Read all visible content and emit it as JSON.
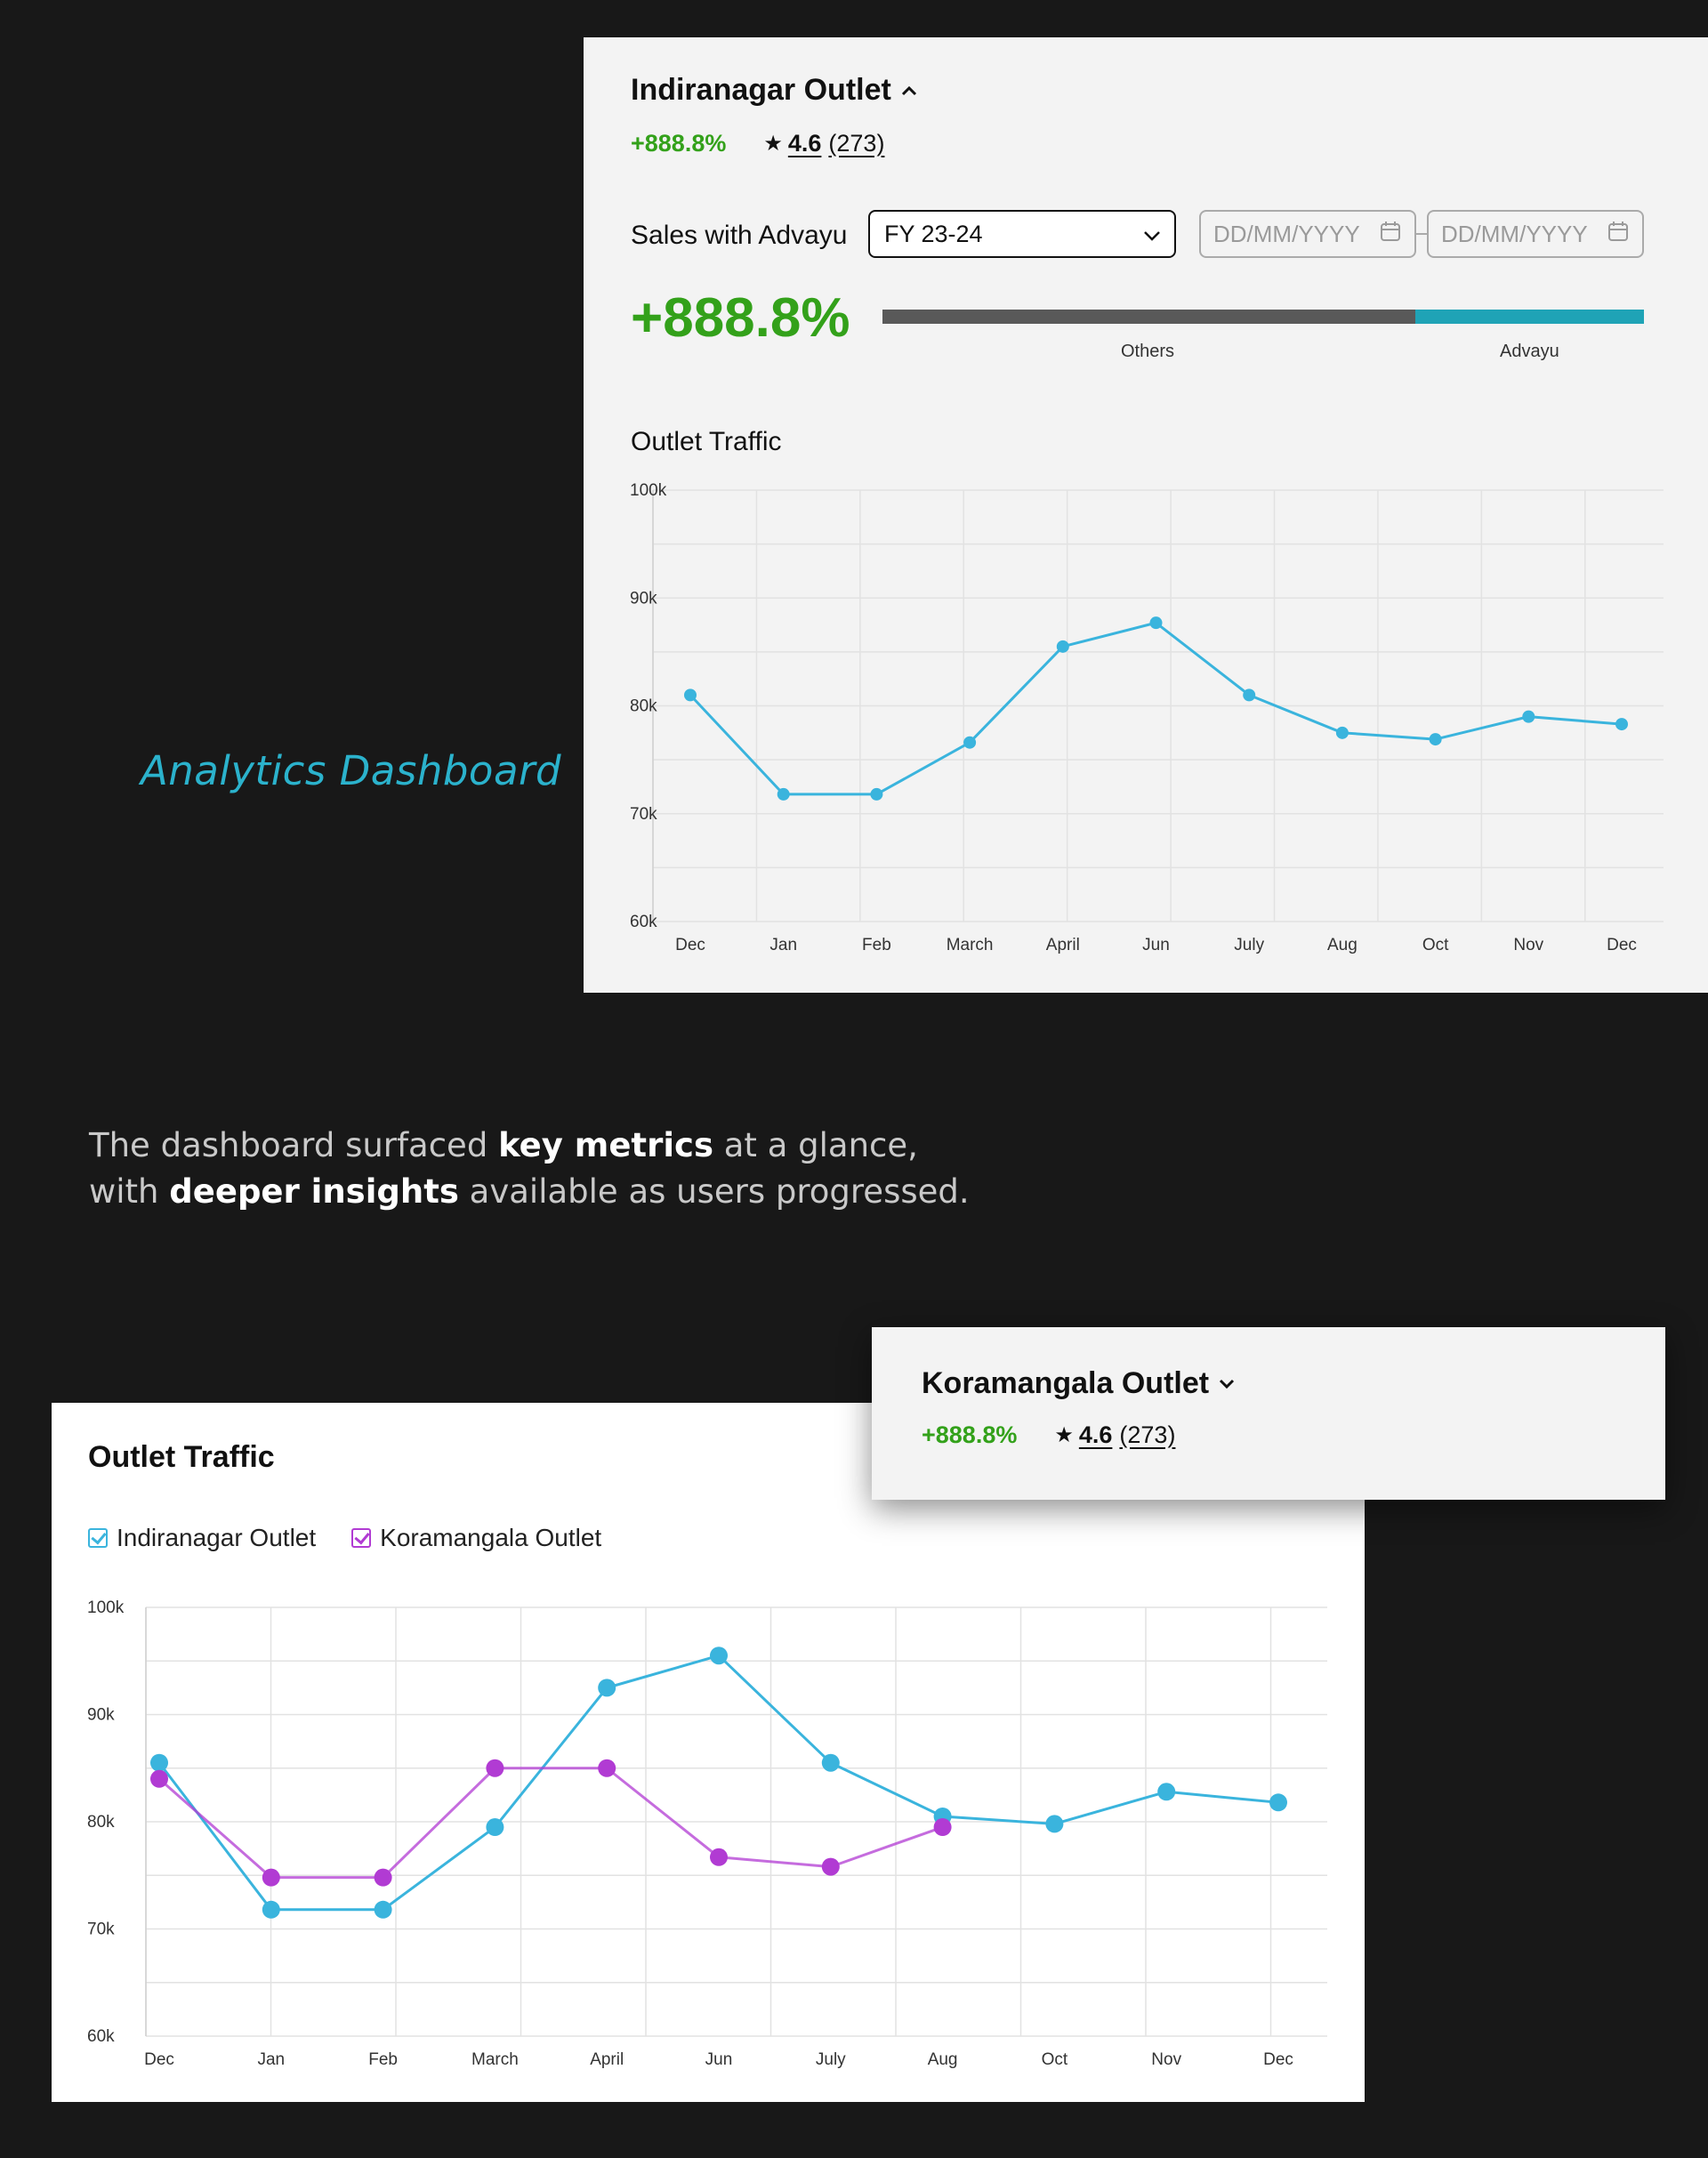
{
  "caption": {
    "title": "Analytics Dashboard"
  },
  "top_panel": {
    "outlet_name": "Indiranagar Outlet",
    "growth": "+888.8%",
    "rating": "4.6",
    "reviews": "(273)",
    "sales_label": "Sales with Advayu",
    "fy_select": "FY 23-24",
    "date_placeholder_1": "DD/MM/YYYY",
    "date_placeholder_2": "DD/MM/YYYY",
    "big_growth": "+888.8%",
    "split": {
      "others_label": "Others",
      "advayu_label": "Advayu",
      "advayu_share": 0.3,
      "others_color": "#595959",
      "advayu_color": "#1fa3b6"
    },
    "chart_title": "Outlet Traffic"
  },
  "middle_text": {
    "part1": "The dashboard surfaced ",
    "bold1": "key metrics",
    "part2": " at a glance,",
    "part3": "with ",
    "bold2": "deeper insights",
    "part4": " available as users progressed."
  },
  "bottom_panel": {
    "title": "Outlet Traffic",
    "legend": [
      {
        "label": "Indiranagar Outlet",
        "color": "#3ab4dd"
      },
      {
        "label": "Koramangala Outlet",
        "color": "#b13bd3"
      }
    ]
  },
  "popup": {
    "outlet_name": "Koramangala Outlet",
    "growth": "+888.8%",
    "rating": "4.6",
    "reviews": "(273)"
  },
  "colors": {
    "accent_green": "#33a11a",
    "teal": "#2bb2cc",
    "series_blue": "#3ab4dd",
    "series_purple": "#b13bd3"
  },
  "chart_data": [
    {
      "type": "line",
      "title": "Outlet Traffic",
      "categories": [
        "Dec",
        "Jan",
        "Feb",
        "March",
        "April",
        "Jun",
        "July",
        "Aug",
        "Oct",
        "Nov",
        "Dec"
      ],
      "y_ticks": [
        "100k",
        "90k",
        "80k",
        "70k",
        "60k"
      ],
      "ylim": [
        60000,
        100000
      ],
      "grid": true,
      "series": [
        {
          "color": "#3ab4dd",
          "values": [
            81000,
            71800,
            71800,
            76600,
            85500,
            87700,
            81000,
            77500,
            76900,
            79000,
            78300
          ]
        }
      ]
    },
    {
      "type": "line",
      "title": "Outlet Traffic",
      "categories": [
        "Dec",
        "Jan",
        "Feb",
        "March",
        "April",
        "Jun",
        "July",
        "Aug",
        "Oct",
        "Nov",
        "Dec"
      ],
      "y_ticks": [
        "100k",
        "90k",
        "80k",
        "70k",
        "60k"
      ],
      "ylim": [
        60000,
        100000
      ],
      "grid": true,
      "series": [
        {
          "name": "Indiranagar Outlet",
          "color": "#3ab4dd",
          "values": [
            85500,
            71800,
            71800,
            79500,
            92500,
            95500,
            85500,
            80500,
            79800,
            82800,
            81800
          ]
        },
        {
          "name": "Koramangala Outlet",
          "color": "#b13bd3",
          "values": [
            84000,
            74800,
            74800,
            85000,
            85000,
            76700,
            75800,
            79500,
            null,
            null,
            null
          ]
        }
      ]
    }
  ]
}
